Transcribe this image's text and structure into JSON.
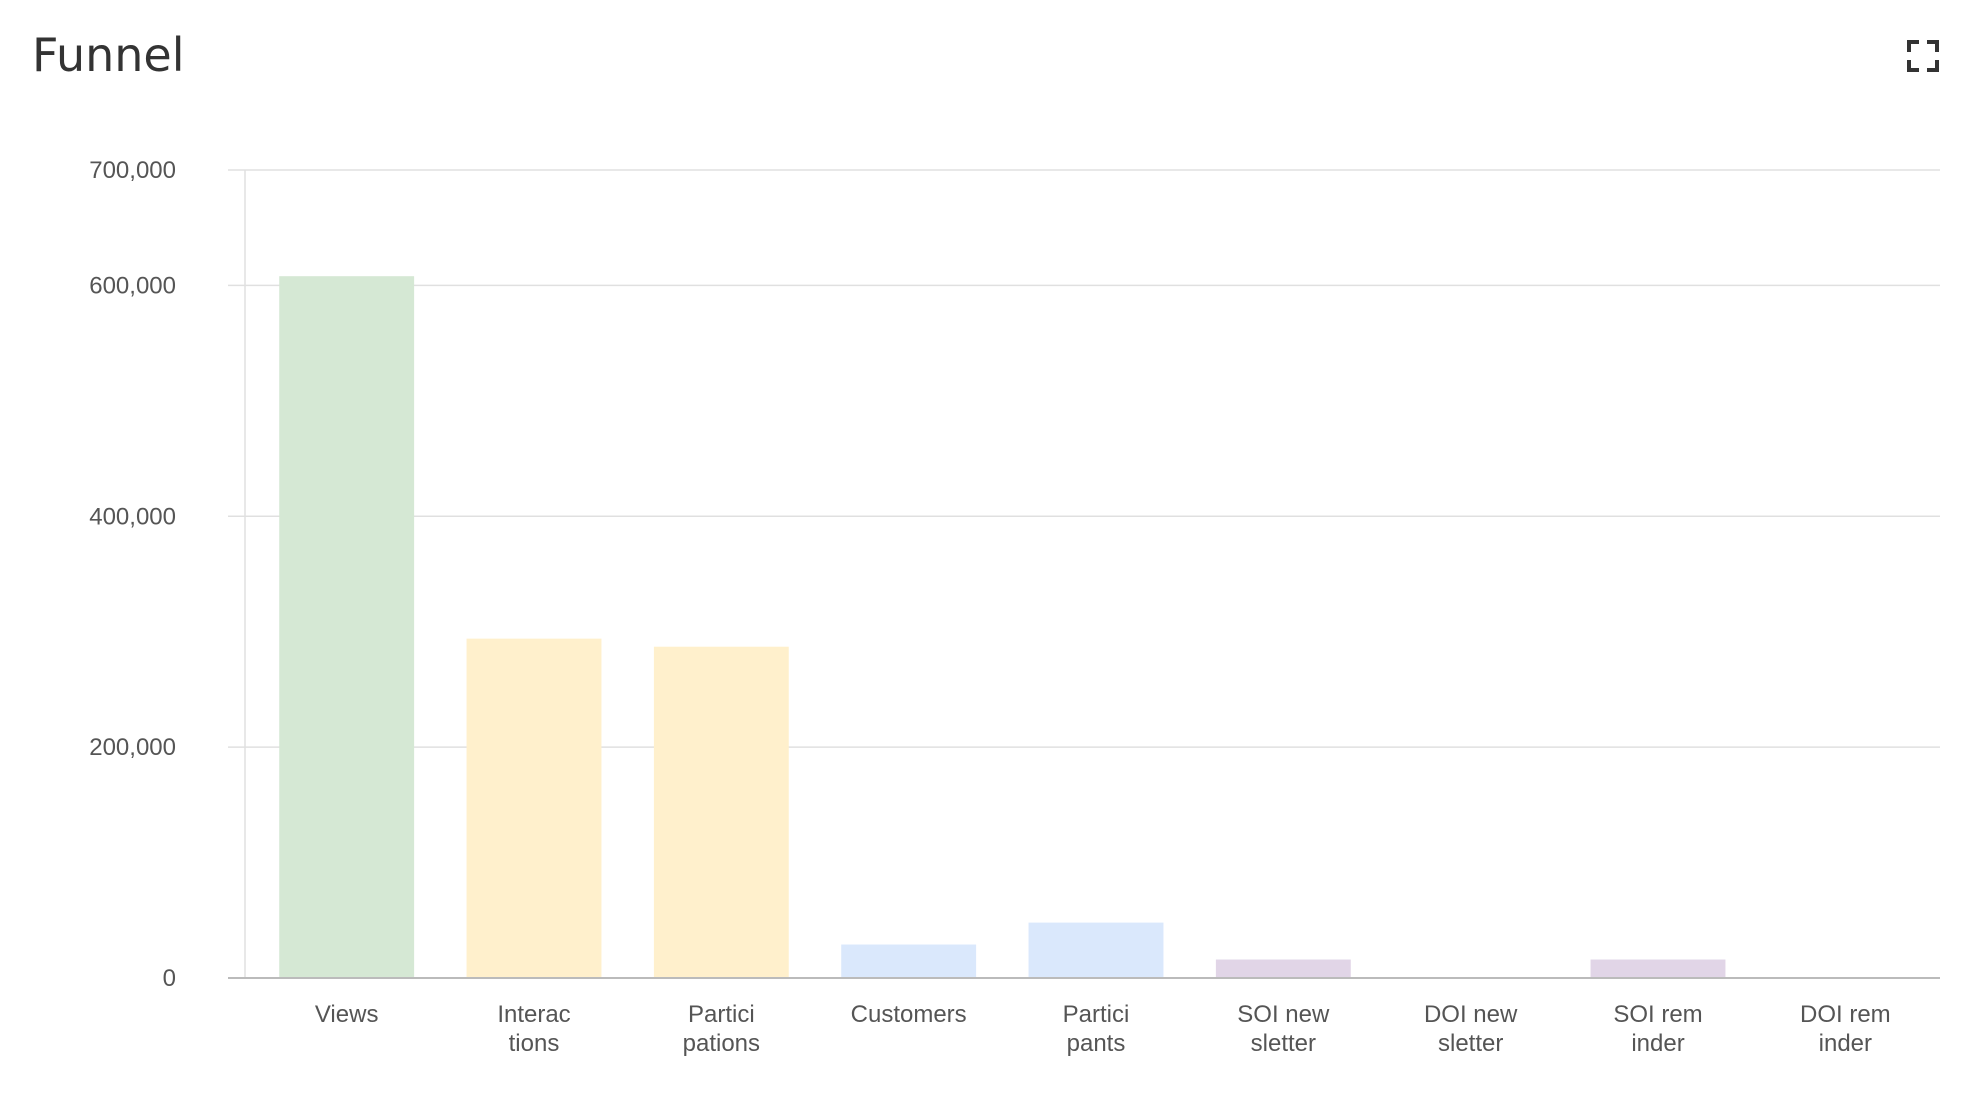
{
  "header": {
    "title": "Funnel"
  },
  "chart_data": {
    "type": "bar",
    "categories": [
      [
        "Views"
      ],
      [
        "Interac",
        "tions"
      ],
      [
        "Partici",
        "pations"
      ],
      [
        "Customers"
      ],
      [
        "Partici",
        "pants"
      ],
      [
        "SOI new",
        "sletter"
      ],
      [
        "DOI new",
        "sletter"
      ],
      [
        "SOI rem",
        "inder"
      ],
      [
        "DOI rem",
        "inder"
      ]
    ],
    "values": [
      608000,
      294000,
      287000,
      29000,
      48000,
      16000,
      0,
      16000,
      0
    ],
    "colors": [
      "#d5e8d4",
      "#fff0cc",
      "#fff0cc",
      "#dae8fc",
      "#dae8fc",
      "#e1d5e7",
      "#e1d5e7",
      "#e1d5e7",
      "#e1d5e7"
    ],
    "yticks": [
      0,
      200000,
      400000,
      600000,
      700000
    ],
    "ytick_labels": [
      "0",
      "200,000",
      "400,000",
      "600,000",
      "700,000"
    ],
    "ylim": [
      0,
      700000
    ],
    "grid": true,
    "title": "Funnel",
    "xlabel": "",
    "ylabel": ""
  },
  "icons": {
    "expand": "fullscreen-expand-icon"
  },
  "colors": {
    "grid": "#e0e0e0",
    "axis": "#bbbbbb",
    "tick_text": "#555555",
    "title_text": "#333333"
  }
}
